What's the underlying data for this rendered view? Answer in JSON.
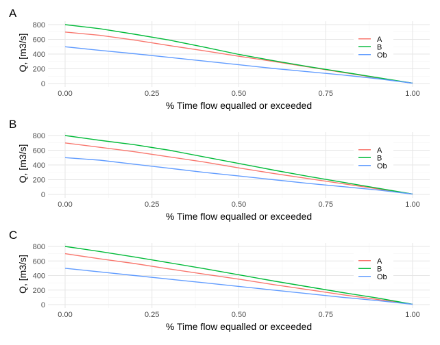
{
  "colors": {
    "panel_background": "#ffffff",
    "grid_major": "#e6e6e6",
    "grid_minor": "#f2f2f2",
    "axis_text": "#4d4d4d",
    "title_text": "#000000",
    "series_A": "#F8766D",
    "series_B": "#00BA38",
    "series_Ob": "#619CFF"
  },
  "chart_data": [
    {
      "type": "line",
      "panel_label": "A",
      "xlabel": "% Time flow equalled or exceeded",
      "ylabel": "Q, [m3/s]",
      "xlim": [
        0,
        1
      ],
      "ylim": [
        0,
        800
      ],
      "x_ticks": [
        0,
        0.25,
        0.5,
        0.75,
        1.0
      ],
      "x_tick_labels": [
        "0.00",
        "0.25",
        "0.50",
        "0.75",
        "1.00"
      ],
      "y_ticks": [
        0,
        200,
        400,
        600,
        800
      ],
      "y_tick_labels": [
        "0",
        "200",
        "400",
        "600",
        "800"
      ],
      "grid": true,
      "legend": "right",
      "x": [
        0,
        0.1,
        0.2,
        0.3,
        0.4,
        0.5,
        0.6,
        0.7,
        0.8,
        0.9,
        1.0
      ],
      "series": [
        {
          "name": "A",
          "color": "#F8766D",
          "values": [
            700,
            655,
            590,
            515,
            445,
            370,
            300,
            225,
            150,
            75,
            5
          ]
        },
        {
          "name": "B",
          "color": "#00BA38",
          "values": [
            800,
            745,
            670,
            590,
            495,
            395,
            310,
            230,
            155,
            80,
            5
          ]
        },
        {
          "name": "Ob",
          "color": "#619CFF",
          "values": [
            500,
            450,
            405,
            355,
            305,
            255,
            205,
            160,
            115,
            65,
            5
          ]
        }
      ]
    },
    {
      "type": "line",
      "panel_label": "B",
      "xlabel": "% Time flow equalled or exceeded",
      "ylabel": "Q, [m3/s]",
      "xlim": [
        0,
        1
      ],
      "ylim": [
        0,
        800
      ],
      "x_ticks": [
        0,
        0.25,
        0.5,
        0.75,
        1.0
      ],
      "x_tick_labels": [
        "0.00",
        "0.25",
        "0.50",
        "0.75",
        "1.00"
      ],
      "y_ticks": [
        0,
        200,
        400,
        600,
        800
      ],
      "y_tick_labels": [
        "0",
        "200",
        "400",
        "600",
        "800"
      ],
      "grid": true,
      "legend": "right",
      "x": [
        0,
        0.1,
        0.2,
        0.3,
        0.4,
        0.5,
        0.6,
        0.7,
        0.8,
        0.9,
        1.0
      ],
      "series": [
        {
          "name": "A",
          "color": "#F8766D",
          "values": [
            700,
            640,
            580,
            510,
            440,
            360,
            285,
            215,
            145,
            75,
            5
          ]
        },
        {
          "name": "B",
          "color": "#00BA38",
          "values": [
            800,
            735,
            675,
            600,
            510,
            420,
            330,
            245,
            165,
            85,
            5
          ]
        },
        {
          "name": "Ob",
          "color": "#619CFF",
          "values": [
            500,
            465,
            410,
            355,
            300,
            250,
            200,
            150,
            105,
            60,
            5
          ]
        }
      ]
    },
    {
      "type": "line",
      "panel_label": "C",
      "xlabel": "% Time flow equalled or exceeded",
      "ylabel": "Q, [m3/s]",
      "xlim": [
        0,
        1
      ],
      "ylim": [
        0,
        800
      ],
      "x_ticks": [
        0,
        0.25,
        0.5,
        0.75,
        1.0
      ],
      "x_tick_labels": [
        "0.00",
        "0.25",
        "0.50",
        "0.75",
        "1.00"
      ],
      "y_ticks": [
        0,
        200,
        400,
        600,
        800
      ],
      "y_tick_labels": [
        "0",
        "200",
        "400",
        "600",
        "800"
      ],
      "grid": true,
      "legend": "right",
      "x": [
        0,
        0.1,
        0.2,
        0.3,
        0.4,
        0.5,
        0.6,
        0.7,
        0.8,
        0.9,
        1.0
      ],
      "series": [
        {
          "name": "A",
          "color": "#F8766D",
          "values": [
            700,
            630,
            565,
            490,
            420,
            350,
            275,
            205,
            135,
            70,
            5
          ]
        },
        {
          "name": "B",
          "color": "#00BA38",
          "values": [
            800,
            730,
            655,
            575,
            495,
            410,
            325,
            245,
            165,
            90,
            5
          ]
        },
        {
          "name": "Ob",
          "color": "#619CFF",
          "values": [
            500,
            450,
            400,
            350,
            300,
            250,
            200,
            150,
            100,
            55,
            5
          ]
        }
      ]
    }
  ]
}
